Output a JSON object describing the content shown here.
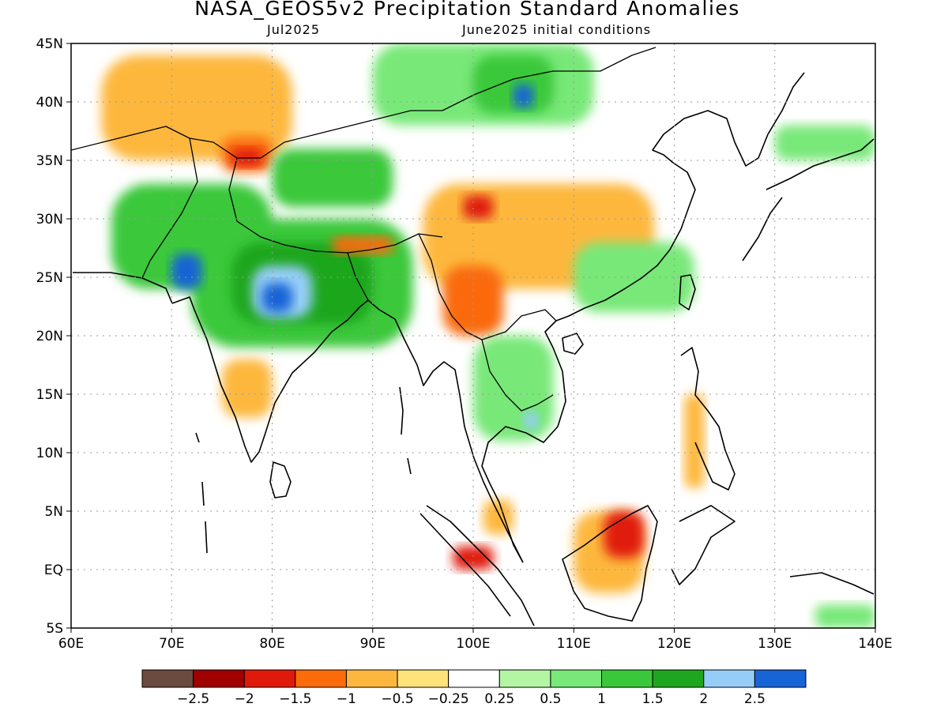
{
  "title": "NASA_GEOS5v2 Precipitation Standard Anomalies",
  "subtitle_left": "Jul2025",
  "subtitle_right": "June2025 initial conditions",
  "map": {
    "lon_range": [
      60,
      140
    ],
    "lat_range": [
      -5,
      45
    ],
    "x_ticks": [
      "60E",
      "70E",
      "80E",
      "90E",
      "100E",
      "110E",
      "120E",
      "130E",
      "140E"
    ],
    "y_ticks": [
      "45N",
      "40N",
      "35N",
      "30N",
      "25N",
      "20N",
      "15N",
      "10N",
      "5N",
      "EQ",
      "5S"
    ],
    "grid": true
  },
  "colorbar": {
    "colors": [
      "#6b4a3f",
      "#a00000",
      "#e01a0a",
      "#fa6b0a",
      "#fdb73e",
      "#fde37a",
      "#ffffff",
      "#b4f5a4",
      "#78e878",
      "#3ac83a",
      "#1fa61f",
      "#95cdf8",
      "#1764d6"
    ],
    "labels": [
      "−2.5",
      "−2",
      "−1.5",
      "−1",
      "−0.5",
      "−0.25",
      "0.25",
      "0.5",
      "1",
      "1.5",
      "2",
      "2.5"
    ]
  },
  "regions": [
    {
      "name": "central-asia-dry",
      "color": "#fdb73e",
      "lon": [
        63,
        82
      ],
      "lat": [
        35,
        44
      ]
    },
    {
      "name": "afghanistan-dry-core",
      "color": "#fa6b0a",
      "lon": [
        75,
        80
      ],
      "lat": [
        34,
        37
      ]
    },
    {
      "name": "karakoram-very-dry",
      "color": "#e01a0a",
      "lon": [
        76,
        79
      ],
      "lat": [
        34.5,
        36
      ]
    },
    {
      "name": "mongolia-wet",
      "color": "#78e878",
      "lon": [
        90,
        112
      ],
      "lat": [
        38,
        45
      ]
    },
    {
      "name": "mongolia-wet-core",
      "color": "#3ac83a",
      "lon": [
        100,
        108
      ],
      "lat": [
        39,
        44
      ]
    },
    {
      "name": "mongolia-blue",
      "color": "#1764d6",
      "lon": [
        104,
        106
      ],
      "lat": [
        39.5,
        41.5
      ]
    },
    {
      "name": "tibet-wet",
      "color": "#3ac83a",
      "lon": [
        80,
        92
      ],
      "lat": [
        31,
        36
      ]
    },
    {
      "name": "pakistan-wet",
      "color": "#3ac83a",
      "lon": [
        64,
        80
      ],
      "lat": [
        24,
        33
      ]
    },
    {
      "name": "india-wet",
      "color": "#3ac83a",
      "lon": [
        72,
        94
      ],
      "lat": [
        19,
        30
      ]
    },
    {
      "name": "india-wet-core",
      "color": "#1fa61f",
      "lon": [
        76,
        90
      ],
      "lat": [
        21,
        28
      ]
    },
    {
      "name": "gujarat-blue",
      "color": "#1764d6",
      "lon": [
        70,
        73
      ],
      "lat": [
        24,
        27
      ]
    },
    {
      "name": "up-lightblue",
      "color": "#95cdf8",
      "lon": [
        78,
        84
      ],
      "lat": [
        21.5,
        26
      ]
    },
    {
      "name": "up-blue",
      "color": "#1764d6",
      "lon": [
        79,
        82
      ],
      "lat": [
        22,
        24.5
      ]
    },
    {
      "name": "nepal-dry",
      "color": "#fa6b0a",
      "lon": [
        86,
        92
      ],
      "lat": [
        27,
        28.5
      ]
    },
    {
      "name": "china-central-dry",
      "color": "#fdb73e",
      "lon": [
        95,
        118
      ],
      "lat": [
        24,
        33
      ]
    },
    {
      "name": "sichuan-red",
      "color": "#e01a0a",
      "lon": [
        99,
        102
      ],
      "lat": [
        30,
        32
      ]
    },
    {
      "name": "southeast-china-wet",
      "color": "#78e878",
      "lon": [
        110,
        122
      ],
      "lat": [
        22,
        28
      ]
    },
    {
      "name": "deccan-dry",
      "color": "#fdb73e",
      "lon": [
        75,
        80
      ],
      "lat": [
        13,
        18
      ]
    },
    {
      "name": "myanmar-dry",
      "color": "#fa6b0a",
      "lon": [
        97,
        103
      ],
      "lat": [
        20,
        26
      ]
    },
    {
      "name": "indochina-wet",
      "color": "#78e878",
      "lon": [
        100,
        108
      ],
      "lat": [
        11,
        20
      ]
    },
    {
      "name": "cambodia-blue",
      "color": "#95cdf8",
      "lon": [
        105,
        106.5
      ],
      "lat": [
        12,
        13.5
      ]
    },
    {
      "name": "borneo-dry",
      "color": "#fdb73e",
      "lon": [
        110,
        117
      ],
      "lat": [
        -2,
        5
      ]
    },
    {
      "name": "borneo-red",
      "color": "#e01a0a",
      "lon": [
        113,
        117
      ],
      "lat": [
        1,
        5
      ]
    },
    {
      "name": "sumatra-red",
      "color": "#e01a0a",
      "lon": [
        98,
        102
      ],
      "lat": [
        0,
        2
      ]
    },
    {
      "name": "malaya-dry",
      "color": "#fdb73e",
      "lon": [
        101,
        104
      ],
      "lat": [
        3,
        6
      ]
    },
    {
      "name": "philippines-dry",
      "color": "#fdb73e",
      "lon": [
        121,
        123
      ],
      "lat": [
        7,
        15
      ]
    },
    {
      "name": "japan-wet",
      "color": "#78e878",
      "lon": [
        130,
        140
      ],
      "lat": [
        35,
        38
      ]
    },
    {
      "name": "png-wet",
      "color": "#78e878",
      "lon": [
        134,
        140
      ],
      "lat": [
        -5,
        -3
      ]
    }
  ]
}
